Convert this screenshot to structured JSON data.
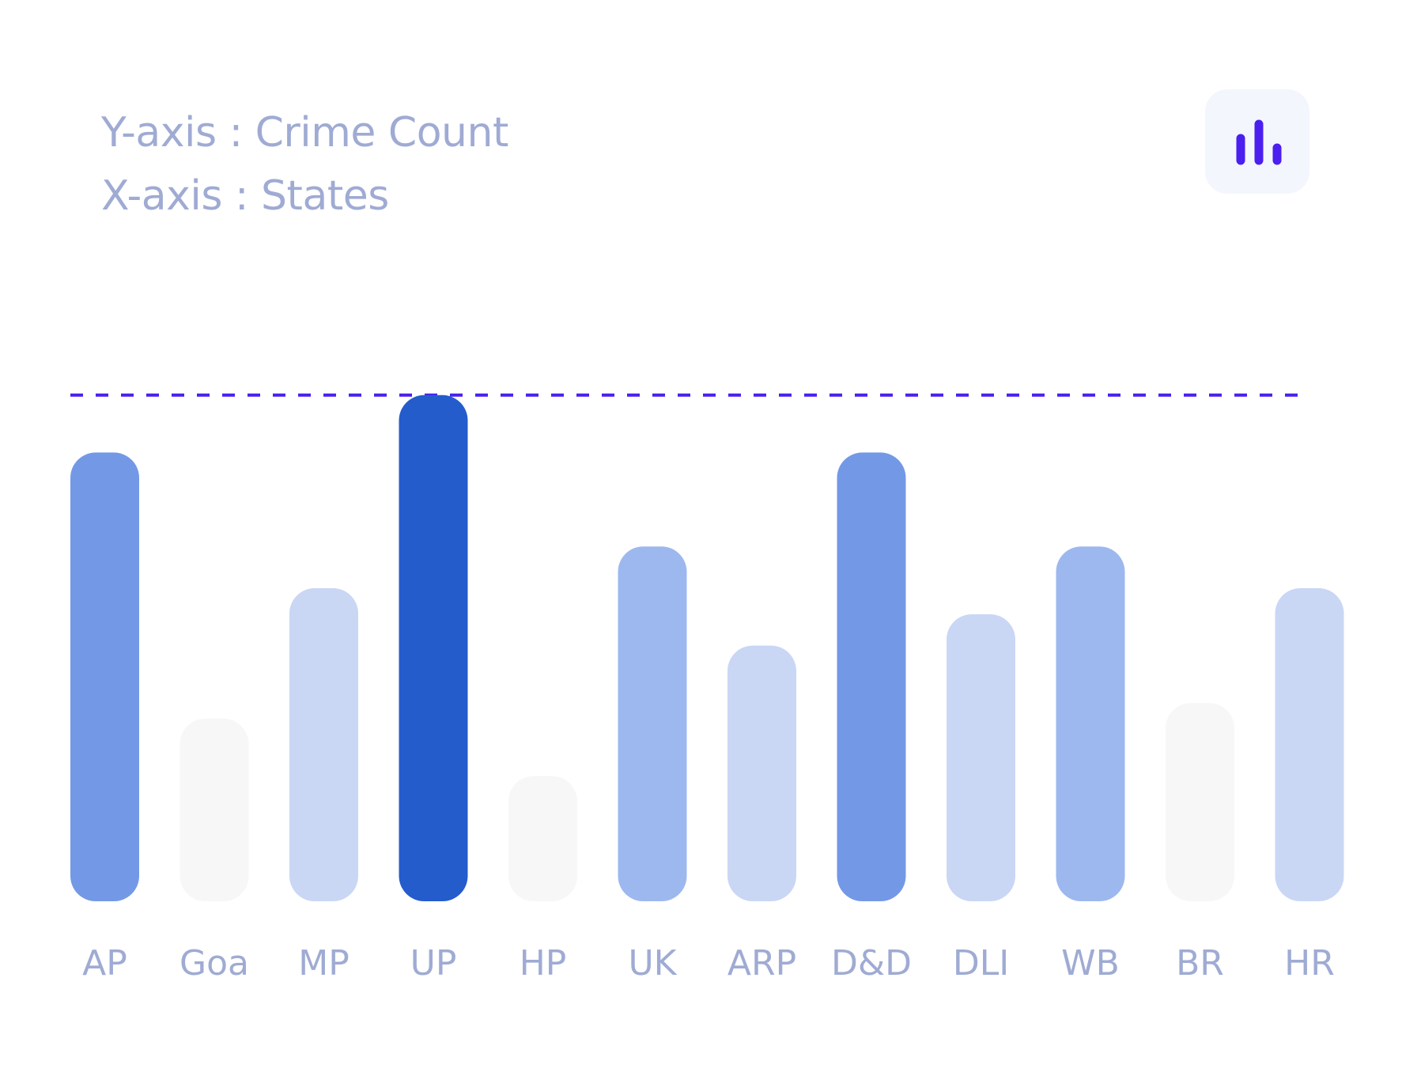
{
  "axis_legend": {
    "y_label": "Y-axis : Crime Count",
    "x_label": "X-axis : States"
  },
  "icons": {
    "chart_button": "bar-chart-icon"
  },
  "colors": {
    "reference_line": "#4a1ff0",
    "icon": "#4a1ff0",
    "tick_label": "#9fabd3",
    "button_bg": "#f3f6fd"
  },
  "chart_data": {
    "type": "bar",
    "categories": [
      "AP",
      "Goa",
      "MP",
      "UP",
      "HP",
      "UK",
      "ARP",
      "D&D",
      "DLI",
      "WB",
      "BR",
      "HR"
    ],
    "values": [
      86,
      35,
      60,
      97,
      24,
      68,
      49,
      86,
      55,
      68,
      38,
      60
    ],
    "bar_colors": [
      "#7399e6",
      "#f7f7f7",
      "#c9d7f5",
      "#245ccc",
      "#f7f7f7",
      "#9db8ef",
      "#c9d7f5",
      "#7399e6",
      "#c9d7f5",
      "#9db8ef",
      "#f7f7f7",
      "#c9d7f5"
    ],
    "reference_line": 97,
    "ylim": [
      0,
      100
    ],
    "grid": false
  }
}
